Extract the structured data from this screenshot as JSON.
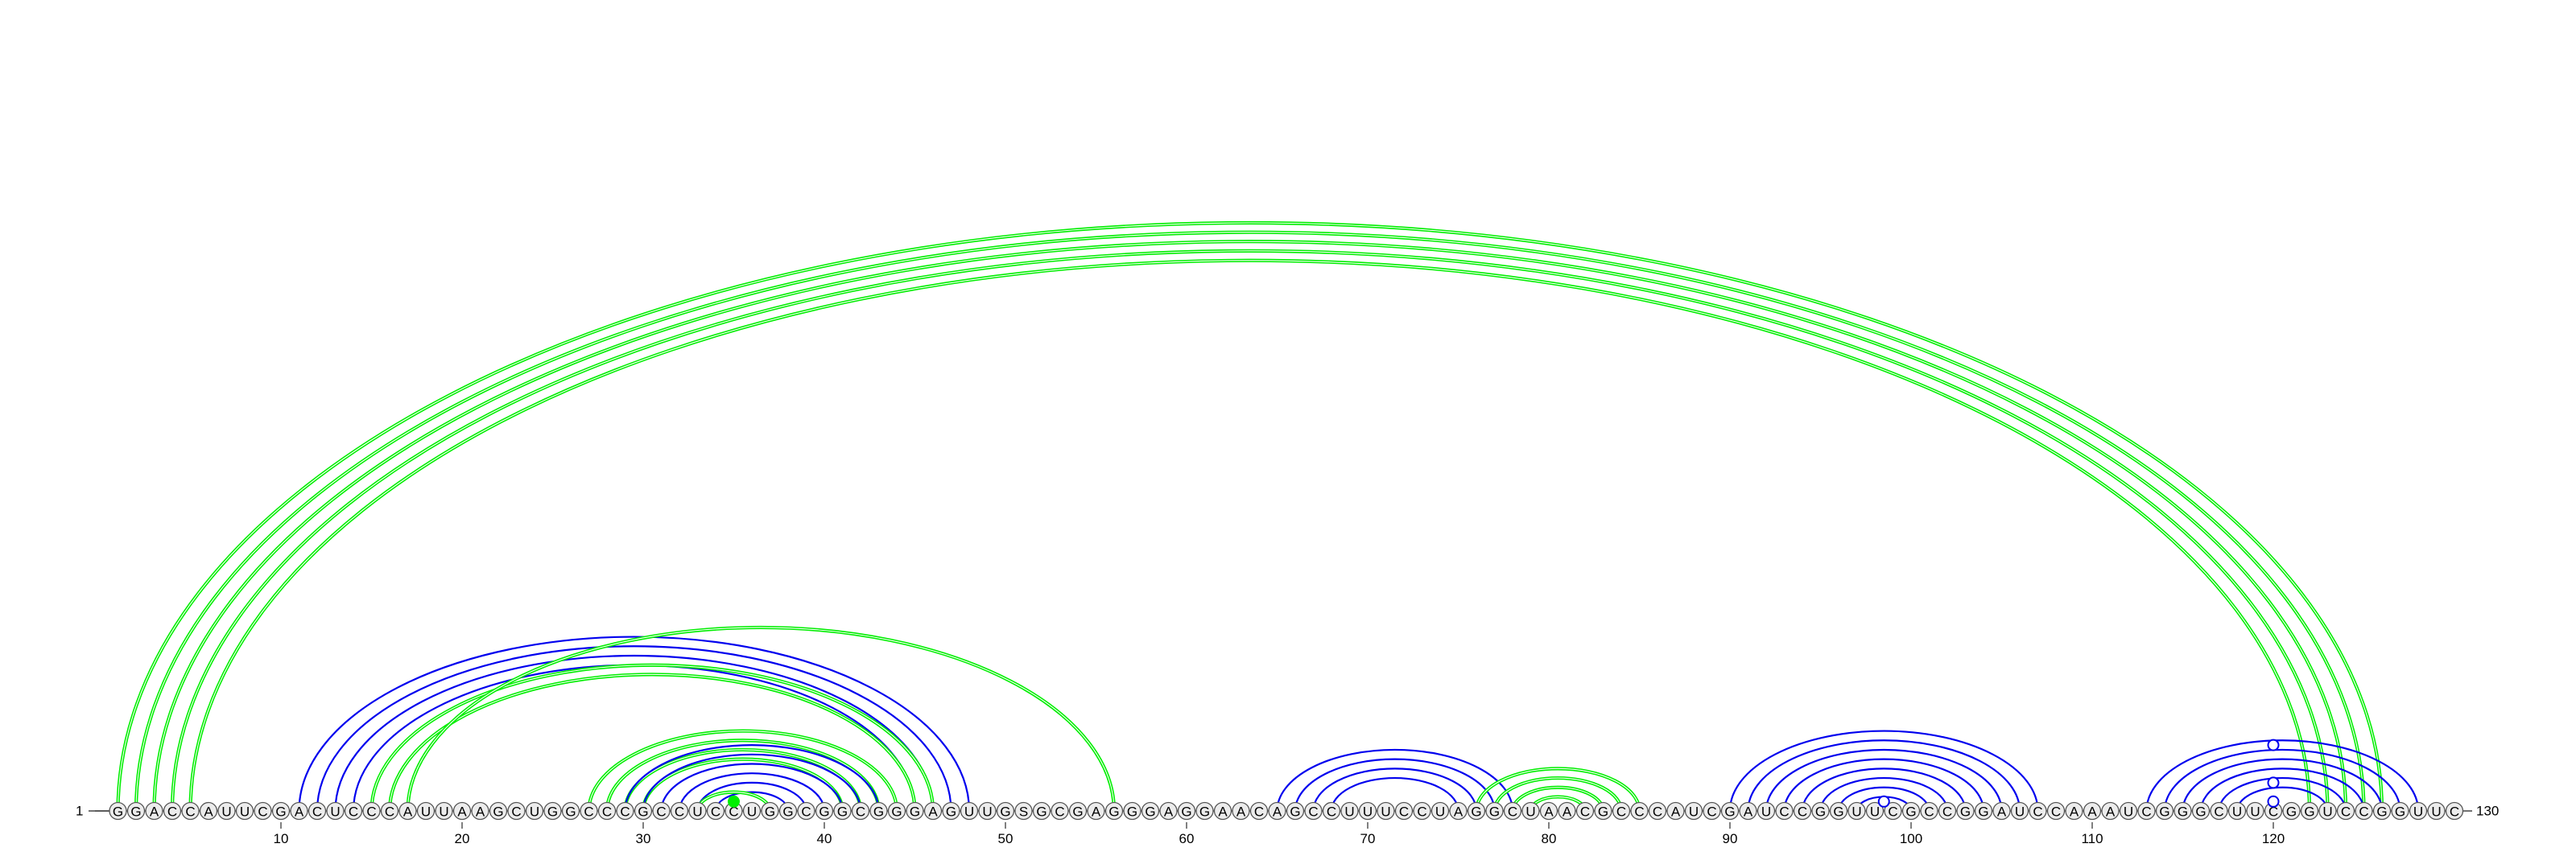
{
  "sequence": "GGACCAUUCGACUCCCAUUAAGCUGGCCCGCCUCCUGGCGGCGGGAGUUGSGCGAGGGAGGAACAGCCUUUCCUAGGCUAACGCCCAUCGAUCCGGUUCGCCGGAUCCAAAUCGGGCUUCGGUCCGGUUC",
  "start_label": "1",
  "end_label": "130",
  "ticks": [
    {
      "pos": 10,
      "label": "10"
    },
    {
      "pos": 20,
      "label": "20"
    },
    {
      "pos": 30,
      "label": "30"
    },
    {
      "pos": 40,
      "label": "40"
    },
    {
      "pos": 50,
      "label": "50"
    },
    {
      "pos": 60,
      "label": "60"
    },
    {
      "pos": 70,
      "label": "70"
    },
    {
      "pos": 80,
      "label": "80"
    },
    {
      "pos": 90,
      "label": "90"
    },
    {
      "pos": 100,
      "label": "100"
    },
    {
      "pos": 110,
      "label": "110"
    },
    {
      "pos": 120,
      "label": "120"
    }
  ],
  "colors": {
    "predicted": "#00ee00",
    "reference": "#0000ee",
    "nucleotide_fill": "#ececec",
    "nucleotide_stroke": "#555555"
  },
  "arc_groups": [
    {
      "kind": "green",
      "pairs": [
        [
          1,
          126
        ],
        [
          2,
          125
        ],
        [
          3,
          124
        ],
        [
          4,
          123
        ],
        [
          5,
          122
        ]
      ]
    },
    {
      "kind": "blue",
      "pairs": [
        [
          11,
          48
        ],
        [
          12,
          47
        ],
        [
          13,
          46
        ],
        [
          14,
          45
        ]
      ]
    },
    {
      "kind": "green",
      "pairs": [
        [
          15,
          46
        ],
        [
          16,
          45
        ]
      ]
    },
    {
      "kind": "green",
      "pairs": [
        [
          17,
          56
        ]
      ]
    },
    {
      "kind": "green",
      "pairs": [
        [
          27,
          44
        ],
        [
          28,
          43
        ],
        [
          29,
          42
        ],
        [
          30,
          41
        ]
      ]
    },
    {
      "kind": "blue",
      "pairs": [
        [
          29,
          43
        ],
        [
          30,
          42
        ],
        [
          31,
          41
        ],
        [
          32,
          40
        ],
        [
          33,
          39
        ],
        [
          34,
          38
        ]
      ]
    },
    {
      "kind": "green",
      "pairs": [
        [
          33,
          37
        ]
      ]
    },
    {
      "kind": "blue",
      "pairs": [
        [
          65,
          78
        ],
        [
          66,
          77
        ],
        [
          67,
          76
        ],
        [
          68,
          75
        ]
      ]
    },
    {
      "kind": "green",
      "pairs": [
        [
          76,
          85
        ],
        [
          77,
          84
        ],
        [
          78,
          83
        ],
        [
          79,
          82
        ]
      ]
    },
    {
      "kind": "blue",
      "pairs": [
        [
          90,
          107
        ],
        [
          91,
          106
        ],
        [
          92,
          105
        ],
        [
          93,
          104
        ],
        [
          94,
          103
        ],
        [
          95,
          102
        ],
        [
          96,
          101
        ],
        [
          97,
          100
        ]
      ]
    },
    {
      "kind": "blue",
      "pairs": [
        [
          113,
          128
        ],
        [
          114,
          127
        ],
        [
          115,
          126
        ],
        [
          116,
          125
        ],
        [
          117,
          124
        ],
        [
          118,
          123
        ]
      ]
    }
  ],
  "markers": [
    {
      "pos": 35,
      "level": 0.5,
      "kind": "green",
      "filled": true
    },
    {
      "pos": 98.5,
      "level": 0.5,
      "kind": "blue",
      "filled": false
    },
    {
      "pos": 120,
      "level": 0.5,
      "kind": "blue",
      "filled": false
    },
    {
      "pos": 120,
      "level": 1.5,
      "kind": "blue",
      "filled": false
    },
    {
      "pos": 120,
      "level": 3.5,
      "kind": "blue",
      "filled": false
    }
  ]
}
